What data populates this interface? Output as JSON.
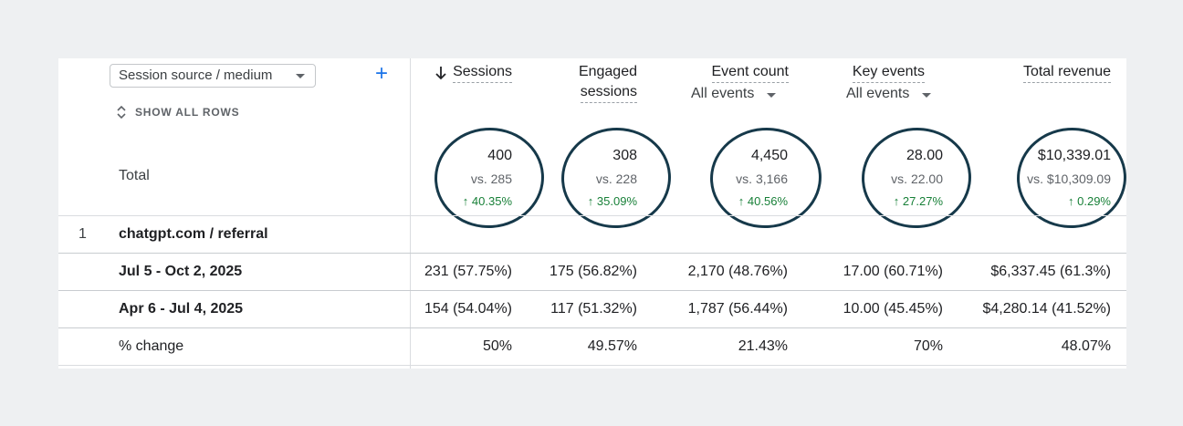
{
  "dimension": {
    "label": "Session source / medium"
  },
  "add_dimension": {
    "symbol": "+"
  },
  "show_all_rows": {
    "label": "SHOW ALL ROWS"
  },
  "columns": [
    {
      "label_line1": "Sessions",
      "label_line2": "",
      "sorted": true,
      "sort_icon": "arrow-down-icon"
    },
    {
      "label_line1": "Engaged",
      "label_line2": "sessions"
    },
    {
      "label_line1": "Event count",
      "filter": "All events"
    },
    {
      "label_line1": "Key events",
      "filter": "All events"
    },
    {
      "label_line1": "Total revenue"
    }
  ],
  "totals": {
    "label": "Total",
    "metrics": [
      {
        "value": "400",
        "compare": "vs. 285",
        "change": "↑ 40.35%"
      },
      {
        "value": "308",
        "compare": "vs. 228",
        "change": "↑ 35.09%"
      },
      {
        "value": "4,450",
        "compare": "vs. 3,166",
        "change": "↑ 40.56%"
      },
      {
        "value": "28.00",
        "compare": "vs. 22.00",
        "change": "↑ 27.27%"
      },
      {
        "value": "$10,339.01",
        "compare": "vs. $10,309.09",
        "change": "↑ 0.29%"
      }
    ]
  },
  "rows": [
    {
      "index": "1",
      "label": "chatgpt.com / referral"
    }
  ],
  "subrows": [
    {
      "label": "Jul 5 - Oct 2, 2025",
      "values": [
        "231 (57.75%)",
        "175 (56.82%)",
        "2,170 (48.76%)",
        "17.00 (60.71%)",
        "$6,337.45 (61.3%)"
      ]
    },
    {
      "label": "Apr 6 - Jul 4, 2025",
      "values": [
        "154 (54.04%)",
        "117 (51.32%)",
        "1,787 (56.44%)",
        "10.00 (45.45%)",
        "$4,280.14 (41.52%)"
      ]
    },
    {
      "label": "% change",
      "values": [
        "50%",
        "49.57%",
        "21.43%",
        "70%",
        "48.07%"
      ]
    }
  ],
  "colors": {
    "positive_change": "#188038",
    "circle_annotation": "#16394a",
    "accent": "#1a73e8"
  }
}
